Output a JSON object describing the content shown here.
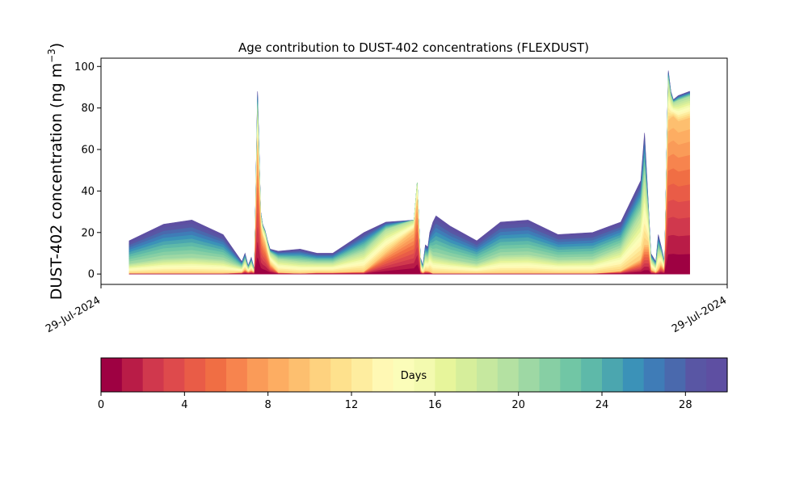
{
  "chart_data": {
    "type": "area",
    "title": "Age contribution to DUST-402 concentrations (FLEXDUST)",
    "ylabel": "DUST-402 concentration (ng m",
    "ylabel_sup": "−3",
    "ylabel_close": ")",
    "ylim": [
      -5,
      104
    ],
    "yticks": [
      0,
      20,
      40,
      60,
      80,
      100
    ],
    "xticks": [
      "29-Jul-2024",
      "29-Jul-2024"
    ],
    "grid": false,
    "x": [
      0.045,
      0.1,
      0.145,
      0.195,
      0.225,
      0.23,
      0.235,
      0.24,
      0.245,
      0.25,
      0.255,
      0.258,
      0.262,
      0.266,
      0.27,
      0.283,
      0.318,
      0.345,
      0.37,
      0.42,
      0.455,
      0.5,
      0.505,
      0.51,
      0.514,
      0.518,
      0.522,
      0.525,
      0.53,
      0.535,
      0.558,
      0.6,
      0.638,
      0.682,
      0.73,
      0.785,
      0.83,
      0.862,
      0.868,
      0.874,
      0.878,
      0.886,
      0.89,
      0.894,
      0.9,
      0.906,
      0.91,
      0.914,
      0.922,
      0.94
    ],
    "series_by_age_shares": {
      "young": [
        0.0,
        0.0,
        0.0,
        0.0,
        0.1,
        0.2,
        0.2,
        0.2,
        0.3,
        0.7,
        0.75,
        0.75,
        0.7,
        0.6,
        0.4,
        0.05,
        0.0,
        0.05,
        0.05,
        0.05,
        0.4,
        0.8,
        0.8,
        0.2,
        0.1,
        0.1,
        0.1,
        0.05,
        0.0,
        0.0,
        0.0,
        0.0,
        0.0,
        0.0,
        0.0,
        0.0,
        0.05,
        0.15,
        0.2,
        0.4,
        0.2,
        0.1,
        0.1,
        0.3,
        0.3,
        0.75,
        0.85,
        0.9,
        0.85,
        0.85
      ],
      "mid": [
        0.3,
        0.3,
        0.3,
        0.35,
        0.45,
        0.45,
        0.45,
        0.45,
        0.45,
        0.2,
        0.2,
        0.2,
        0.25,
        0.3,
        0.45,
        0.6,
        0.5,
        0.5,
        0.5,
        0.5,
        0.45,
        0.2,
        0.2,
        0.5,
        0.5,
        0.5,
        0.5,
        0.5,
        0.35,
        0.3,
        0.3,
        0.3,
        0.35,
        0.35,
        0.35,
        0.35,
        0.45,
        0.5,
        0.5,
        0.45,
        0.5,
        0.5,
        0.5,
        0.45,
        0.45,
        0.2,
        0.12,
        0.08,
        0.12,
        0.12
      ]
    },
    "total": [
      16,
      24,
      26,
      19,
      6,
      10,
      4,
      8,
      2,
      88,
      30,
      24,
      21,
      16,
      12,
      11,
      12,
      10,
      10,
      20,
      25,
      26,
      44,
      8,
      4,
      14,
      13,
      20,
      25,
      28,
      23,
      16,
      25,
      26,
      19,
      20,
      25,
      45,
      68,
      34,
      10,
      6,
      19,
      14,
      6,
      98,
      88,
      84,
      86,
      88
    ],
    "colorbar": {
      "label": "Days",
      "min": 0,
      "max": 30,
      "ticks": [
        0,
        4,
        8,
        12,
        16,
        20,
        24,
        28
      ],
      "colors": [
        "#9e0142",
        "#b91c47",
        "#d0384d",
        "#de4a4c",
        "#e95c47",
        "#f06e44",
        "#f7844e",
        "#fa9b58",
        "#fdad62",
        "#fdbf6f",
        "#fed27f",
        "#fee18d",
        "#feed9f",
        "#fff8b4",
        "#fbfdb9",
        "#f3faaf",
        "#e7f59b",
        "#d6ee9b",
        "#c6e89f",
        "#b4e1a2",
        "#9ed8a4",
        "#87cfa4",
        "#71c6a5",
        "#5eb9a9",
        "#4ba6af",
        "#3b92b8",
        "#3f7cb7",
        "#4a69ad",
        "#5956a4",
        "#5e4fa2"
      ]
    }
  }
}
